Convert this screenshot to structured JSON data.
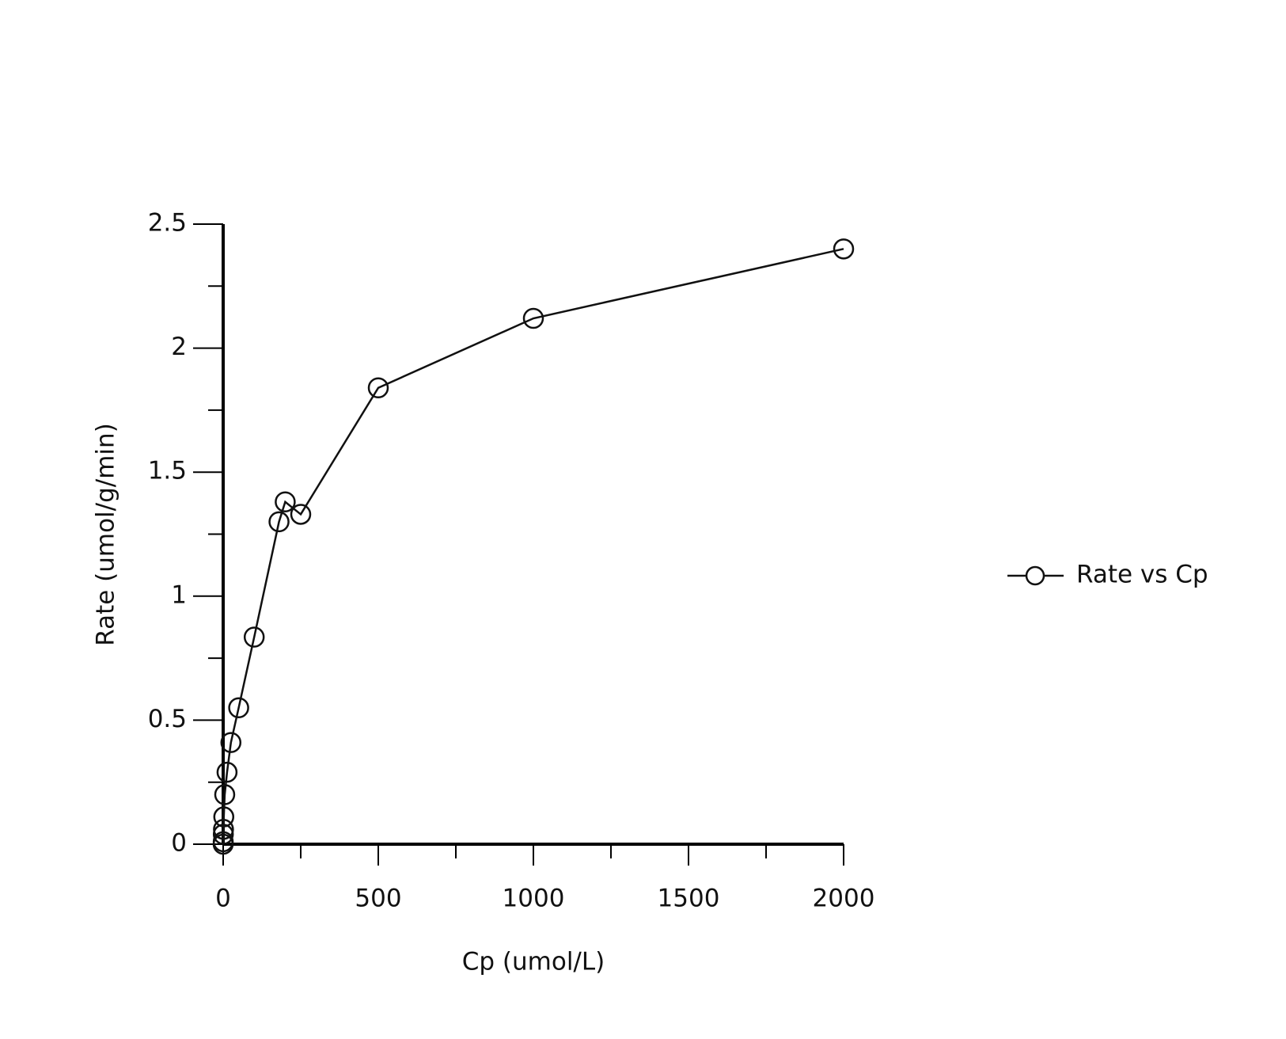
{
  "chart_data": {
    "type": "line",
    "xlabel": "Cp (umol/L)",
    "ylabel": "Rate (umol/g/min)",
    "series": [
      {
        "name": "Rate vs Cp",
        "color": "#111111",
        "marker": "open-circle",
        "x": [
          0,
          0.2,
          0.5,
          1,
          2,
          5,
          12.5,
          25,
          50,
          100,
          180,
          200,
          250,
          500,
          1000,
          2000
        ],
        "values": [
          0,
          0.01,
          0.04,
          0.06,
          0.11,
          0.2,
          0.29,
          0.41,
          0.55,
          0.835,
          1.3,
          1.38,
          1.33,
          1.84,
          2.12,
          2.4
        ]
      }
    ],
    "xlim": [
      0,
      2000
    ],
    "xticks": [
      0,
      500,
      1000,
      1500,
      2000
    ],
    "xminorticks": [
      250,
      750,
      1250,
      1750
    ],
    "ylim": [
      0,
      2.5
    ],
    "yticks": [
      0,
      0.5,
      1,
      1.5,
      2,
      2.5
    ],
    "yminorticks": [
      0.25,
      0.75,
      1.25,
      1.75,
      2.25
    ],
    "grid": false,
    "legend": "right"
  }
}
